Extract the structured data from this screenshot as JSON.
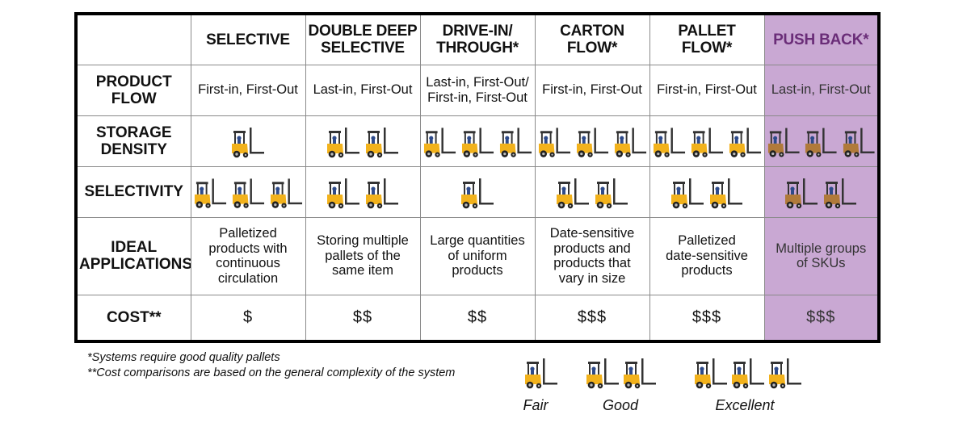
{
  "table": {
    "columns": [
      {
        "label": "SELECTIVE"
      },
      {
        "label": "DOUBLE DEEP\nSELECTIVE"
      },
      {
        "label": "DRIVE-IN/\nTHROUGH*"
      },
      {
        "label": "CARTON\nFLOW*"
      },
      {
        "label": "PALLET\nFLOW*"
      },
      {
        "label": "PUSH BACK*"
      }
    ],
    "rows": {
      "product_flow": {
        "label": "PRODUCT\nFLOW",
        "values": [
          "First-in, First-Out",
          "Last-in, First-Out",
          "Last-in, First-Out/\nFirst-in, First-Out",
          "First-in, First-Out",
          "First-in, First-Out",
          "Last-in, First-Out"
        ]
      },
      "storage_density": {
        "label": "STORAGE\nDENSITY",
        "ratings": [
          1,
          2,
          3,
          3,
          3,
          3
        ]
      },
      "selectivity": {
        "label": "SELECTIVITY",
        "ratings": [
          3,
          2,
          1,
          2,
          2,
          2
        ]
      },
      "ideal_applications": {
        "label": "IDEAL\nAPPLICATIONS",
        "values": [
          "Palletized\nproducts with\ncontinuous\ncirculation",
          "Storing multiple\npallets of the\nsame item",
          "Large quantities\nof uniform\nproducts",
          "Date-sensitive\nproducts and\nproducts that\nvary in size",
          "Palletized\ndate-sensitive\nproducts",
          "Multiple groups\nof SKUs"
        ]
      },
      "cost": {
        "label": "COST**",
        "values": [
          "$",
          "$$",
          "$$",
          "$$$",
          "$$$",
          "$$$"
        ]
      }
    }
  },
  "notes": {
    "note1": "*Systems require good quality pallets",
    "note2": "**Cost comparisons are based on the general complexity of the system"
  },
  "legend": {
    "fair": "Fair",
    "good": "Good",
    "excellent": "Excellent"
  },
  "colors": {
    "forklift": "#f2b21c",
    "forklift_push_back": "#b07a3a",
    "push_back_fill": "#c9a8d3",
    "push_back_header": "#6a2d78"
  },
  "icons": {
    "rating": "forklift-icon"
  }
}
